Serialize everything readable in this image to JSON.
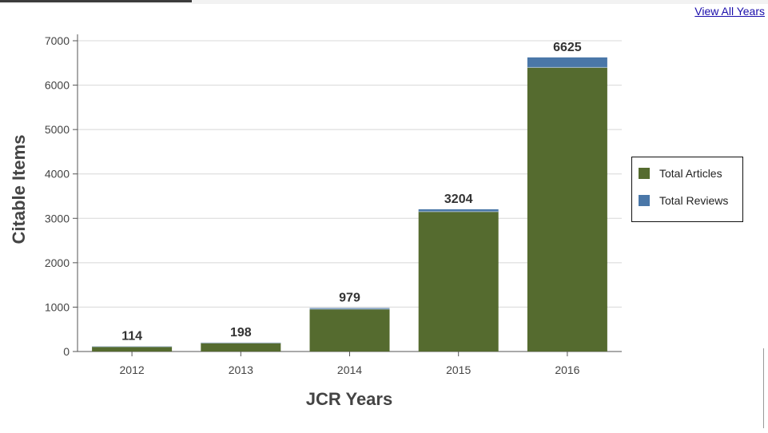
{
  "header": {
    "view_all_label": "View All Years"
  },
  "colors": {
    "articles": "#556b2f",
    "reviews": "#4a77a8"
  },
  "chart_data": {
    "type": "bar",
    "stacked": true,
    "categories": [
      "2012",
      "2013",
      "2014",
      "2015",
      "2016"
    ],
    "series": [
      {
        "name": "Total Articles",
        "values": [
          110,
          193,
          955,
          3152,
          6400
        ]
      },
      {
        "name": "Total Reviews",
        "values": [
          4,
          5,
          24,
          52,
          225
        ]
      }
    ],
    "totals": [
      "114",
      "198",
      "979",
      "3204",
      "6625"
    ],
    "xlabel": "JCR Years",
    "ylabel": "Citable Items",
    "ylim": [
      0,
      7000
    ],
    "yticks": [
      0,
      1000,
      2000,
      3000,
      4000,
      5000,
      6000,
      7000
    ],
    "grid": true,
    "legend_position": "right"
  }
}
